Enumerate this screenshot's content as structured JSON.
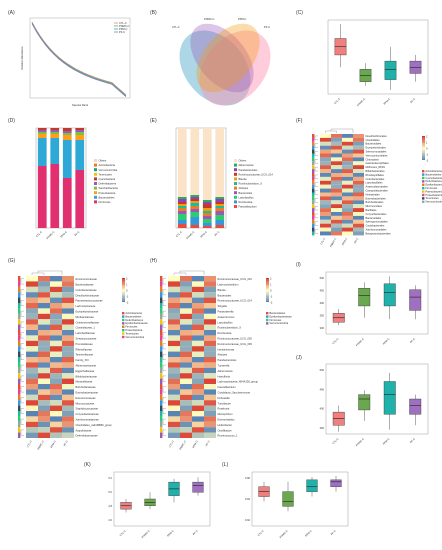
{
  "colors": {
    "ctl": "#f08080",
    "pnmc": "#6aa84f",
    "ppm": "#20b2aa",
    "pfc": "#a070c0",
    "heat_low": "#4575b4",
    "heat_mid": "#ffffbf",
    "heat_high": "#d73027"
  },
  "panels": {
    "A": {
      "label": "(A)",
      "xlabel": "Species Rank",
      "ylabel": "Relative Abundance"
    },
    "B": {
      "label": "(B)",
      "sets": [
        "CTL-C",
        "PNMC-C",
        "PPM-C",
        "PF-C"
      ],
      "colors": [
        "#4aa6c8",
        "#9b59b6",
        "#f39c12",
        "#ff8fb0"
      ]
    },
    "C": {
      "label": "(C)",
      "ylabel": "Firmicutes / Bacteroidetes ratio",
      "xlabel": "Group",
      "groups": [
        "CTL-C",
        "PNMC-C",
        "PPM-C",
        "PF-C"
      ]
    },
    "D": {
      "label": "(D)",
      "ylabel": "Relative Abundance (%)",
      "xlabel": "Group",
      "legend_title": "Phylum",
      "legend": [
        "Others",
        "Actinobacteria",
        "Verrucomicrobia",
        "Tenericutes",
        "Cyanobacteria",
        "Deferribacteres",
        "Saccharibacteria",
        "Proteobacteria",
        "Bacteroidetes",
        "Firmicutes"
      ]
    },
    "E": {
      "label": "(E)",
      "ylabel": "Relative Abundance (%)",
      "xlabel": "Group",
      "legend_title": "Genus",
      "legend": [
        "Others",
        "Akkermansia",
        "Parabacteroides",
        "Ruminococcaceae_UCG_014",
        "Blautia",
        "Ruminiclostridium_9",
        "Alistipes",
        "Bacteroides",
        "Lactobacillus",
        "Romboutsia",
        "Faecalibaculum"
      ]
    },
    "F": {
      "label": "(F)",
      "title": "Order",
      "legend_title": "Phylum",
      "rows": [
        "Desulfovibrionales",
        "Clostridiales",
        "Bacteroidales",
        "Erysipelotrichales",
        "Selenomonadales",
        "Verrucomicrobiales",
        "Chloroplast",
        "Gastranaerophilales",
        "Mollicutes_RF39",
        "Bifidobacteriales",
        "Rhodospirillales",
        "Coriobacteriales",
        "Lactobacillales",
        "Anaeroplasmatales",
        "Campylobacterales",
        "Neisseriales",
        "Enterobacteriales",
        "Burkholderiales",
        "Micrococcales",
        "Bacillales",
        "Corynebacteriales",
        "Bacteroidales",
        "Sphingomonadales",
        "Caulobacterales",
        "Xanthomonadales",
        "Betaproteobacteriales"
      ],
      "legend": [
        "Actinobacteria",
        "Bacteroidetes",
        "Cyanobacteria",
        "Deferribacteres",
        "Epsilonbacteraeota",
        "Firmicutes",
        "Patescibacteria",
        "Proteobacteria",
        "Tenericutes",
        "Verrucomicrobia"
      ],
      "scale": [
        "2",
        "1",
        "0",
        "-1",
        "-2"
      ]
    },
    "G": {
      "label": "(G)",
      "title": "Family",
      "legend_title": "Phylum",
      "rows": [
        "Ruminococcaceae",
        "Bacteroidaceae",
        "Coriobacteriaceae",
        "Desulfovibrionaceae",
        "Peptostreptococcaceae",
        "Lachnospiraceae",
        "Erysipelotrichaceae",
        "Muribaculaceae",
        "Christensenellaceae",
        "Clostridiaceae_1",
        "Lactobacillaceae",
        "Streptococcaceae",
        "Prevotellaceae",
        "Rikenellaceae",
        "Tannerellaceae",
        "Family_XIII",
        "Akkermansiaceae",
        "Eggerthellaceae",
        "Bifidobacteriaceae",
        "Moraxellaceae",
        "Burkholderiaceae",
        "Enterobacteriaceae",
        "Enterococcaceae",
        "Micrococcaceae",
        "Staphylococcaceae",
        "Corynebacteriaceae",
        "Xanthomonadaceae",
        "Clostridiales_vadinBB60_group",
        "Atopobiaceae",
        "Deferribacteraceae"
      ],
      "legend": [
        "Actinobacteria",
        "Bacteroidetes",
        "Deferribacteres",
        "Epsilonbacteraeota",
        "Firmicutes",
        "Proteobacteria",
        "Tenericutes",
        "Verrucomicrobia"
      ],
      "scale": [
        "2",
        "1",
        "0",
        "-1",
        "-2"
      ]
    },
    "H": {
      "label": "(H)",
      "title": "Genus",
      "legend_title": "Phylum",
      "rows": [
        "Ruminococcaceae_UCG_010",
        "Lachnoclostridium",
        "Blautia",
        "Bacteroides",
        "Ruminococcaceae_UCG_014",
        "Shigella",
        "Parasutterella",
        "Anaerotruncus",
        "Lactobacillus",
        "Ruminiclostridium_9",
        "Romboutsia",
        "Ruminococcaceae_UCG_005",
        "Ruminococcaceae_UCG_009",
        "Intestinimonas",
        "Alistipes",
        "Parabacteroides",
        "Tuzzerella",
        "Akkermansia",
        "Harryflintia",
        "Lachnospiraceae_NK4A136_group",
        "Faecalibaculum",
        "Candidatus_Saccharimonas",
        "Dubosiella",
        "Turicibacter",
        "Roseburia",
        "Mucispirillum",
        "Enterorhabdus",
        "Helicobacter",
        "Oscillibacter",
        "Ruminococcus_1"
      ],
      "legend": [
        "Bacteroidetes",
        "Epsilonbacteraeota",
        "Firmicutes",
        "Verrucomicrobia"
      ],
      "scale": [
        "2",
        "1",
        "0",
        "-1",
        "-2"
      ]
    },
    "I": {
      "label": "(I)",
      "ylabel": "Observed_species",
      "xlabel": "Group",
      "ticks": [
        "500",
        "450",
        "400",
        "350",
        "300"
      ]
    },
    "J": {
      "label": "(J)",
      "ylabel": "ACE",
      "xlabel": "Group",
      "ticks": [
        "500",
        "450",
        "400",
        "350"
      ]
    },
    "K": {
      "label": "(K)",
      "ylabel": "Shannon",
      "xlabel": "Group",
      "ticks": [
        "5.2",
        "5.0",
        "4.8",
        "4.6"
      ]
    },
    "L": {
      "label": "(L)",
      "ylabel": "Simpson",
      "xlabel": "Group",
      "ticks": [
        "0.96",
        "0.94",
        "0.92"
      ]
    }
  },
  "heat_cols": [
    "CTL-C",
    "PNMC-C",
    "PPM-C",
    "PF-C"
  ],
  "chart_data": [
    {
      "type": "line",
      "panel": "A",
      "series_colors": [
        "#f08080",
        "#6aa84f",
        "#20b2aa",
        "#a070c0"
      ],
      "x": [
        0,
        0.2,
        0.4,
        0.6,
        0.8,
        1.0
      ],
      "y_log": [
        -1,
        -2,
        -3,
        -3.6,
        -4.2,
        -5.5
      ]
    },
    {
      "type": "box",
      "panel": "C",
      "categories": [
        "CTL-C",
        "PNMC-C",
        "PPM-C",
        "PF-C"
      ],
      "stats": [
        [
          2.3,
          2.9,
          3.3,
          3.7,
          4.4
        ],
        [
          1.4,
          1.6,
          1.9,
          2.2,
          2.5
        ],
        [
          1.2,
          1.7,
          2.2,
          2.6,
          3.3
        ],
        [
          1.6,
          2.0,
          2.3,
          2.6,
          2.9
        ]
      ],
      "ylim": [
        1,
        4.6
      ]
    },
    {
      "type": "bar",
      "panel": "D",
      "stacked": true,
      "categories": [
        "CTL-C",
        "PNMC-C",
        "PPM-C",
        "PF-C"
      ],
      "series": [
        {
          "values": [
            62,
            64,
            50,
            58
          ]
        },
        {
          "values": [
            28,
            26,
            38,
            30
          ]
        },
        {
          "values": [
            4,
            4,
            5,
            5
          ]
        },
        {
          "values": [
            2,
            2,
            2,
            3
          ]
        },
        {
          "values": [
            2,
            2,
            2,
            2
          ]
        },
        {
          "values": [
            2,
            2,
            3,
            2
          ]
        }
      ]
    },
    {
      "type": "bar",
      "panel": "E",
      "stacked": true,
      "categories": [
        "CTL-C",
        "PNMC-C",
        "PPM-C",
        "PF-C"
      ],
      "series": [
        {
          "values": [
            4,
            3,
            2,
            3
          ]
        },
        {
          "values": [
            4,
            8,
            3,
            5
          ]
        },
        {
          "values": [
            6,
            5,
            4,
            5
          ]
        },
        {
          "values": [
            3,
            3,
            3,
            4
          ]
        },
        {
          "values": [
            3,
            3,
            3,
            3
          ]
        },
        {
          "values": [
            2,
            3,
            2,
            2
          ]
        },
        {
          "values": [
            2,
            2,
            3,
            2
          ]
        },
        {
          "values": [
            2,
            2,
            4,
            2
          ]
        },
        {
          "values": [
            3,
            2,
            2,
            3
          ]
        },
        {
          "values": [
            2,
            2,
            2,
            2
          ]
        },
        {
          "values": [
            69,
            67,
            72,
            69
          ]
        }
      ]
    },
    {
      "type": "box",
      "panel": "I",
      "categories": [
        "CTL-C",
        "PNMC-C",
        "PPM-C",
        "PF-C"
      ],
      "stats": [
        [
          330,
          340,
          355,
          370,
          385
        ],
        [
          355,
          395,
          430,
          455,
          475
        ],
        [
          350,
          395,
          440,
          470,
          495
        ],
        [
          350,
          380,
          425,
          450,
          465
        ]
      ],
      "ylim": [
        300,
        510
      ]
    },
    {
      "type": "box",
      "panel": "J",
      "categories": [
        "CTL-C",
        "PNMC-C",
        "PPM-C",
        "PF-C"
      ],
      "stats": [
        [
          345,
          360,
          375,
          390,
          405
        ],
        [
          370,
          395,
          420,
          430,
          440
        ],
        [
          350,
          385,
          430,
          460,
          480
        ],
        [
          360,
          385,
          405,
          420,
          430
        ]
      ],
      "ylim": [
        340,
        500
      ]
    },
    {
      "type": "box",
      "panel": "K",
      "categories": [
        "CTL-C",
        "PNMC-C",
        "PPM-C",
        "PF-C"
      ],
      "stats": [
        [
          4.7,
          4.75,
          4.8,
          4.85,
          4.9
        ],
        [
          4.75,
          4.8,
          4.85,
          4.9,
          5.0
        ],
        [
          4.85,
          4.95,
          5.05,
          5.15,
          5.2
        ],
        [
          4.95,
          5.0,
          5.1,
          5.15,
          5.22
        ]
      ],
      "ylim": [
        4.5,
        5.3
      ]
    },
    {
      "type": "box",
      "panel": "L",
      "categories": [
        "CTL-C",
        "PNMC-C",
        "PPM-C",
        "PF-C"
      ],
      "stats": [
        [
          0.94,
          0.945,
          0.95,
          0.955,
          0.96
        ],
        [
          0.93,
          0.935,
          0.94,
          0.95,
          0.96
        ],
        [
          0.945,
          0.95,
          0.955,
          0.962,
          0.965
        ],
        [
          0.95,
          0.955,
          0.96,
          0.962,
          0.966
        ]
      ],
      "ylim": [
        0.915,
        0.97
      ]
    }
  ]
}
